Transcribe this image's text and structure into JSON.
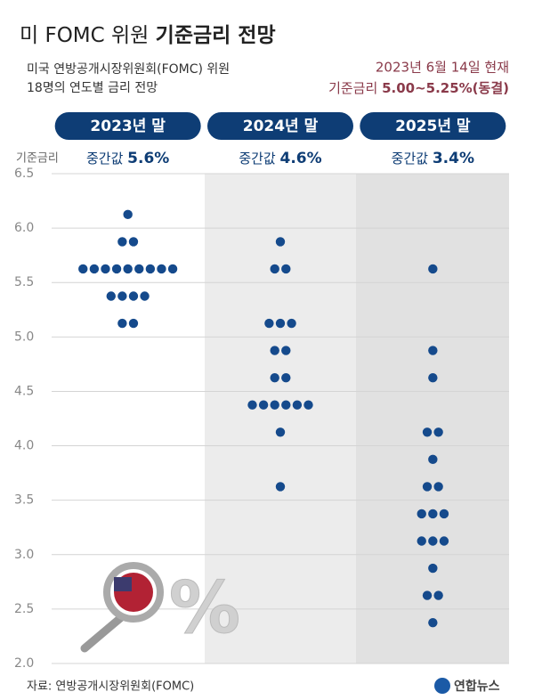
{
  "chart_data": {
    "type": "dotplot",
    "title": "미 FOMC 위원",
    "title_bold": "기준금리 전망",
    "subtitle": [
      "미국 연방공개시장위원회(FOMC) 위원",
      "18명의 연도별 금리 전망"
    ],
    "date_note": "2023년 6월 14일 현재",
    "rate_note": "기준금리",
    "rate_note_bold": "5.00~5.25%(동결)",
    "y_label": "기준금리",
    "median_prefix": "중간값",
    "source": "자료: 연방공개시장위원회(FOMC)",
    "logo": "연합뉴스",
    "ylim": [
      2.0,
      6.5
    ],
    "yticks": [
      6.5,
      {
        "value": 6,
        "label": "6.0"
      },
      5.5,
      {
        "value": 5,
        "label": "5.0"
      },
      4.5,
      {
        "value": 4,
        "label": "4.0"
      },
      3.5,
      {
        "value": 3,
        "label": "3.0"
      },
      2.5,
      {
        "value": 2,
        "label": "2.0"
      }
    ],
    "grid": true,
    "color": "#154a8c",
    "series": [
      {
        "name": "2023년 말",
        "median_label": "5.6%",
        "values": [
          6.125,
          5.875,
          5.875,
          5.625,
          5.625,
          5.625,
          5.625,
          5.625,
          5.625,
          5.625,
          5.625,
          5.625,
          5.375,
          5.375,
          5.375,
          5.375,
          5.125,
          5.125
        ]
      },
      {
        "name": "2024년 말",
        "median_label": "4.6%",
        "values": [
          5.875,
          5.625,
          5.625,
          5.125,
          5.125,
          5.125,
          4.875,
          4.875,
          4.625,
          4.625,
          4.375,
          4.375,
          4.375,
          4.375,
          4.375,
          4.375,
          4.125,
          3.625
        ]
      },
      {
        "name": "2025년 말",
        "median_label": "3.4%",
        "values": [
          5.625,
          4.875,
          4.625,
          4.125,
          4.125,
          3.875,
          3.625,
          3.625,
          3.375,
          3.375,
          3.375,
          3.125,
          3.125,
          3.125,
          2.875,
          2.625,
          2.625,
          2.375
        ]
      }
    ]
  }
}
